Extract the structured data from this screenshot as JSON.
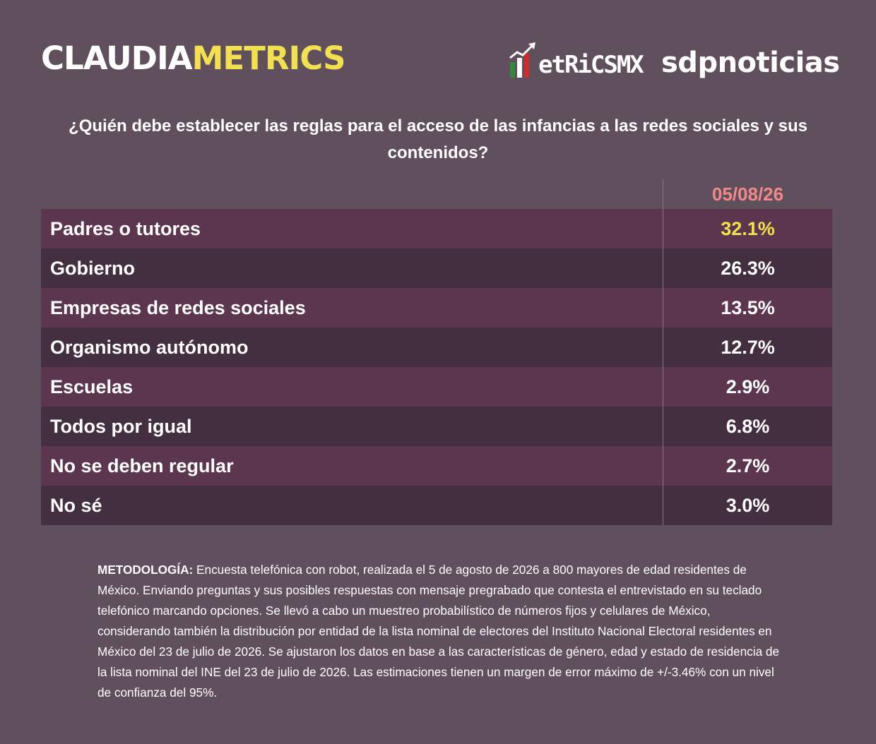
{
  "header": {
    "brand_part1": "CLAUDIA",
    "brand_part2": "METRICS",
    "metrics_logo_text": "etRiCSMX",
    "sdp_logo_text": "sdpnoticias",
    "colors": {
      "brand_yellow": "#f3e04f",
      "date_red": "#f08a8a",
      "background": "#604f5c"
    }
  },
  "question": "¿Quién debe establecer las reglas para el acceso de las infancias a las redes sociales y sus contenidos?",
  "chart_data": {
    "type": "table",
    "columns": [
      "05/08/26"
    ],
    "rows": [
      {
        "label": "Padres o tutores",
        "value": "32.1%"
      },
      {
        "label": "Gobierno",
        "value": "26.3%"
      },
      {
        "label": "Empresas de redes sociales",
        "value": "13.5%"
      },
      {
        "label": "Organismo autónomo",
        "value": "12.7%"
      },
      {
        "label": "Escuelas",
        "value": "2.9%"
      },
      {
        "label": "Todos por igual",
        "value": "6.8%"
      },
      {
        "label": "No se deben regular",
        "value": "2.7%"
      },
      {
        "label": "No sé",
        "value": "3.0%"
      }
    ],
    "highlight_row": 0
  },
  "methodology": {
    "label": "METODOLOGÍA:",
    "text": " Encuesta telefónica con robot, realizada el 5 de agosto de 2026 a 800 mayores de edad residentes de México. Enviando preguntas y sus posibles respuestas con mensaje pregrabado que contesta el entrevistado en su teclado telefónico marcando opciones. Se llevó a cabo un muestreo probabilístico de números fijos y celulares de México, considerando también la distribución por entidad de la lista nominal de electores del Instituto Nacional Electoral residentes en México del 23 de julio de 2026. Se ajustaron los datos en base a las características de género, edad y estado de residencia de la lista nominal del INE del 23 de julio de 2026. Las estimaciones tienen un margen de error máximo de +/-3.46% con un nivel de confianza del 95%."
  }
}
